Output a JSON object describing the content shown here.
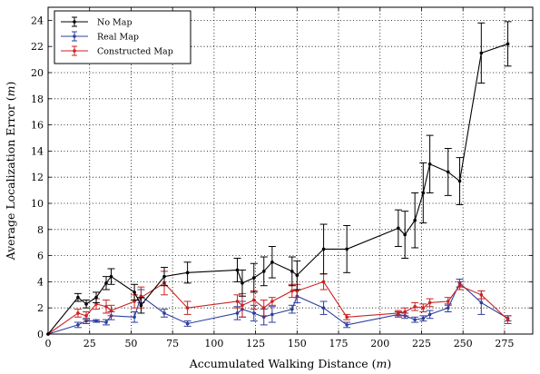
{
  "chart_data": {
    "type": "line",
    "title": "",
    "xlabel": "Accumulated Walking Distance (m)",
    "ylabel": "Average Localization Error (m)",
    "xlim": [
      0,
      292
    ],
    "ylim": [
      0,
      25
    ],
    "xticks": [
      0,
      25,
      50,
      75,
      100,
      125,
      150,
      175,
      200,
      225,
      250,
      275
    ],
    "yticks": [
      0,
      2,
      4,
      6,
      8,
      10,
      12,
      14,
      16,
      18,
      20,
      22,
      24
    ],
    "grid": true,
    "legend_position": "top-left",
    "series": [
      {
        "name": "No Map",
        "color": "#000000",
        "x": [
          0,
          18,
          23,
          29,
          35,
          38,
          52,
          56,
          70,
          84,
          114,
          117,
          124,
          130,
          135,
          147,
          150,
          166,
          180,
          211,
          215,
          221,
          226,
          230,
          241,
          248,
          261,
          277
        ],
        "y": [
          0,
          2.8,
          2.3,
          2.8,
          3.9,
          4.4,
          3.2,
          2.2,
          4.4,
          4.7,
          4.9,
          3.9,
          4.3,
          4.8,
          5.5,
          4.8,
          4.5,
          6.5,
          6.5,
          8.1,
          7.6,
          8.7,
          10.8,
          13.0,
          12.4,
          11.7,
          21.5,
          22.2
        ],
        "err": [
          0,
          0.3,
          0.3,
          0.4,
          0.5,
          0.6,
          0.6,
          0.6,
          0.7,
          0.8,
          0.9,
          1.0,
          1.1,
          1.1,
          1.2,
          1.1,
          1.1,
          1.9,
          1.8,
          1.4,
          1.8,
          2.1,
          2.3,
          2.2,
          1.8,
          1.8,
          2.3,
          1.7
        ]
      },
      {
        "name": "Real Map",
        "color": "#2e3f9e",
        "x": [
          0,
          18,
          23,
          29,
          35,
          38,
          52,
          56,
          70,
          84,
          114,
          117,
          124,
          130,
          135,
          147,
          150,
          166,
          180,
          211,
          215,
          221,
          226,
          230,
          241,
          248,
          261,
          277
        ],
        "y": [
          0,
          0.7,
          1.0,
          1.0,
          0.9,
          1.4,
          1.3,
          2.9,
          1.6,
          0.8,
          1.6,
          1.9,
          1.6,
          1.3,
          1.5,
          1.9,
          2.9,
          2.0,
          0.7,
          1.5,
          1.4,
          1.1,
          1.2,
          1.5,
          2.0,
          3.9,
          2.4,
          1.2
        ],
        "err": [
          0,
          0.2,
          0.2,
          0.1,
          0.2,
          0.3,
          0.4,
          0.5,
          0.3,
          0.2,
          0.5,
          0.6,
          0.6,
          0.6,
          0.6,
          0.3,
          0.5,
          0.5,
          0.2,
          0.2,
          0.2,
          0.2,
          0.2,
          0.3,
          0.3,
          0.3,
          0.9,
          0.2
        ]
      },
      {
        "name": "Constructed Map",
        "color": "#cc2222",
        "x": [
          0,
          18,
          23,
          29,
          35,
          38,
          52,
          56,
          70,
          84,
          114,
          117,
          124,
          130,
          135,
          147,
          150,
          166,
          180,
          211,
          215,
          221,
          226,
          230,
          241,
          248,
          261,
          277
        ],
        "y": [
          0,
          1.6,
          1.4,
          2.3,
          2.1,
          1.8,
          2.5,
          2.8,
          3.9,
          2.0,
          2.5,
          2.2,
          2.6,
          2.0,
          2.5,
          3.3,
          3.3,
          4.0,
          1.3,
          1.6,
          1.7,
          2.1,
          2.0,
          2.4,
          2.5,
          3.7,
          3.0,
          1.1
        ],
        "err": [
          0,
          0.3,
          0.3,
          0.4,
          0.5,
          0.4,
          0.5,
          0.8,
          0.9,
          0.5,
          0.5,
          0.9,
          0.7,
          0.6,
          0.3,
          0.5,
          0.5,
          0.6,
          0.2,
          0.2,
          0.3,
          0.3,
          0.3,
          0.3,
          0.3,
          0.3,
          0.3,
          0.3
        ]
      }
    ]
  }
}
